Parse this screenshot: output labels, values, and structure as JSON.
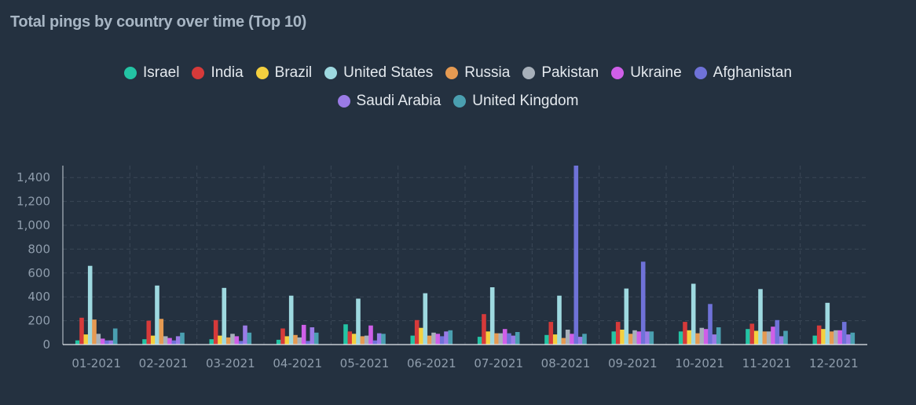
{
  "chart_data": {
    "type": "bar",
    "title": "Total pings by country over time (Top 10)",
    "xlabel": "",
    "ylabel": "",
    "ylim": [
      0,
      1500
    ],
    "yticks": [
      0,
      200,
      400,
      600,
      800,
      1000,
      1200,
      1400
    ],
    "ytick_labels": [
      "0",
      "200",
      "400",
      "600",
      "800",
      "1,000",
      "1,200",
      "1,400"
    ],
    "grid": true,
    "legend_position": "top-center",
    "categories": [
      "01-2021",
      "02-2021",
      "03-2021",
      "04-2021",
      "05-2021",
      "06-2021",
      "07-2021",
      "08-2021",
      "09-2021",
      "10-2021",
      "11-2021",
      "12-2021"
    ],
    "series": [
      {
        "name": "Israel",
        "color": "#23c4a4",
        "values": [
          35,
          45,
          45,
          40,
          170,
          75,
          65,
          80,
          110,
          110,
          130,
          75
        ]
      },
      {
        "name": "India",
        "color": "#d63a3a",
        "values": [
          225,
          200,
          205,
          135,
          110,
          205,
          255,
          190,
          190,
          190,
          175,
          160
        ]
      },
      {
        "name": "Brazil",
        "color": "#f4d03f",
        "values": [
          85,
          75,
          75,
          70,
          90,
          140,
          110,
          85,
          125,
          120,
          115,
          130
        ]
      },
      {
        "name": "United States",
        "color": "#9ed9e0",
        "values": [
          660,
          495,
          475,
          410,
          385,
          430,
          480,
          410,
          470,
          510,
          465,
          350
        ]
      },
      {
        "name": "Russia",
        "color": "#e59a52",
        "values": [
          210,
          215,
          60,
          80,
          70,
          75,
          95,
          55,
          90,
          95,
          110,
          110
        ]
      },
      {
        "name": "Pakistan",
        "color": "#a7b0ba",
        "values": [
          90,
          70,
          90,
          60,
          75,
          100,
          95,
          125,
          120,
          140,
          110,
          120
        ]
      },
      {
        "name": "Ukraine",
        "color": "#cf5fe8",
        "values": [
          50,
          55,
          70,
          165,
          160,
          90,
          130,
          90,
          110,
          130,
          150,
          120
        ]
      },
      {
        "name": "Afghanistan",
        "color": "#6f72d8",
        "values": [
          35,
          35,
          30,
          30,
          35,
          70,
          95,
          1500,
          695,
          340,
          205,
          190
        ]
      },
      {
        "name": "Saudi Arabia",
        "color": "#9a7be6",
        "values": [
          35,
          70,
          160,
          145,
          95,
          110,
          75,
          65,
          110,
          85,
          70,
          85
        ]
      },
      {
        "name": "United Kingdom",
        "color": "#4a9fb0",
        "values": [
          135,
          100,
          100,
          100,
          90,
          120,
          105,
          90,
          110,
          145,
          115,
          100
        ]
      }
    ]
  }
}
